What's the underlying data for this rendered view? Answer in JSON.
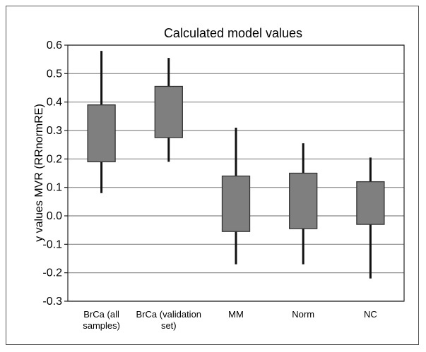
{
  "chart_data": {
    "type": "box",
    "title": "Calculated model values",
    "xlabel": "",
    "ylabel": "y values MVR (RRnormRE)",
    "ylim": [
      -0.3,
      0.6
    ],
    "yticks": [
      "-0.3",
      "-0.2",
      "-0.1",
      "0.0",
      "0.1",
      "0.2",
      "0.3",
      "0.4",
      "0.5",
      "0.6"
    ],
    "grid": true,
    "categories": [
      [
        "BrCa (all",
        "samples)"
      ],
      [
        "BrCa (validation",
        "set)"
      ],
      [
        "MM"
      ],
      [
        "Norm"
      ],
      [
        "NC"
      ]
    ],
    "boxes": [
      {
        "whisker_low": 0.08,
        "q1": 0.19,
        "q3": 0.39,
        "whisker_high": 0.58
      },
      {
        "whisker_low": 0.19,
        "q1": 0.275,
        "q3": 0.455,
        "whisker_high": 0.555
      },
      {
        "whisker_low": -0.17,
        "q1": -0.055,
        "q3": 0.14,
        "whisker_high": 0.31
      },
      {
        "whisker_low": -0.17,
        "q1": -0.045,
        "q3": 0.15,
        "whisker_high": 0.255
      },
      {
        "whisker_low": -0.22,
        "q1": -0.03,
        "q3": 0.12,
        "whisker_high": 0.205
      }
    ],
    "colors": {
      "box_fill": "#7f7f7f",
      "box_edge": "#333333",
      "whisker": "#111111",
      "grid": "#888888"
    }
  }
}
